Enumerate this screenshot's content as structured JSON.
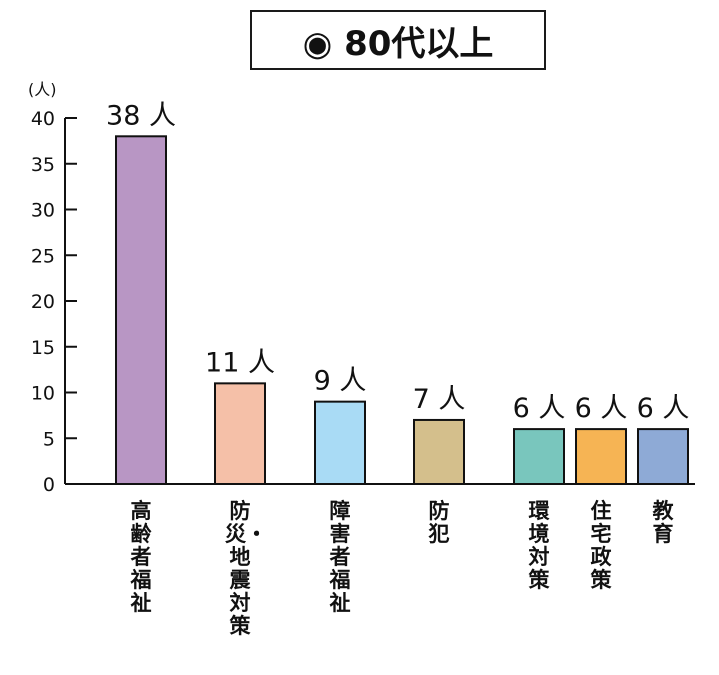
{
  "chart_data": {
    "type": "bar",
    "title": "◉ 80代以上",
    "unit_label": "(人)",
    "ylim": [
      0,
      40
    ],
    "y_ticks": [
      0,
      5,
      10,
      15,
      20,
      25,
      30,
      35,
      40
    ],
    "categories": [
      "高齢者福祉",
      "防災・地震対策",
      "障害者福祉",
      "防犯",
      "環境対策",
      "住宅政策",
      "教育"
    ],
    "values": [
      38,
      11,
      9,
      7,
      6,
      6,
      6
    ],
    "data_labels": [
      "38 人",
      "11 人",
      "9 人",
      "7 人",
      "6 人",
      "6 人",
      "6 人"
    ],
    "colors": [
      "#b896c4",
      "#f5c0a8",
      "#a9dbf5",
      "#d4bf8c",
      "#79c6bd",
      "#f6b454",
      "#8eaad6"
    ],
    "grid": false,
    "legend": "none"
  }
}
